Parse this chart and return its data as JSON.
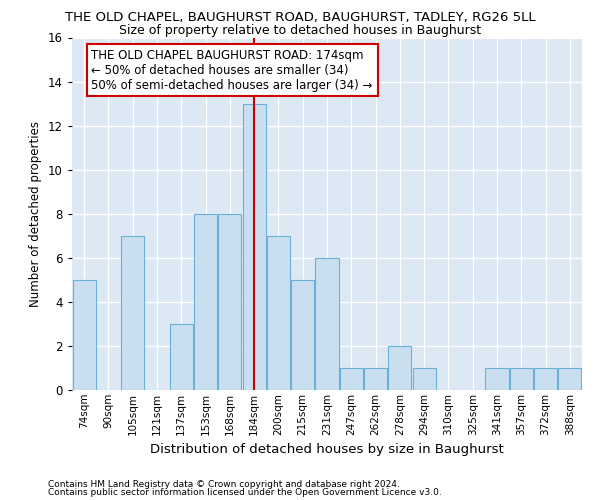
{
  "title_line1": "THE OLD CHAPEL, BAUGHURST ROAD, BAUGHURST, TADLEY, RG26 5LL",
  "title_line2": "Size of property relative to detached houses in Baughurst",
  "xlabel": "Distribution of detached houses by size in Baughurst",
  "ylabel": "Number of detached properties",
  "categories": [
    "74sqm",
    "90sqm",
    "105sqm",
    "121sqm",
    "137sqm",
    "153sqm",
    "168sqm",
    "184sqm",
    "200sqm",
    "215sqm",
    "231sqm",
    "247sqm",
    "262sqm",
    "278sqm",
    "294sqm",
    "310sqm",
    "325sqm",
    "341sqm",
    "357sqm",
    "372sqm",
    "388sqm"
  ],
  "values": [
    5,
    0,
    7,
    0,
    3,
    8,
    8,
    13,
    7,
    5,
    6,
    1,
    1,
    2,
    1,
    0,
    0,
    1,
    1,
    1,
    1
  ],
  "bar_color": "#c9dff0",
  "bar_edge_color": "#6baed6",
  "red_line_index": 7,
  "ylim": [
    0,
    16
  ],
  "yticks": [
    0,
    2,
    4,
    6,
    8,
    10,
    12,
    14,
    16
  ],
  "annotation_lines": [
    "THE OLD CHAPEL BAUGHURST ROAD: 174sqm",
    "← 50% of detached houses are smaller (34)",
    "50% of semi-detached houses are larger (34) →"
  ],
  "annotation_box_facecolor": "#ffffff",
  "annotation_box_edgecolor": "#cc0000",
  "footnote1": "Contains HM Land Registry data © Crown copyright and database right 2024.",
  "footnote2": "Contains public sector information licensed under the Open Government Licence v3.0.",
  "plot_bg_color": "#dce9f5",
  "fig_bg_color": "#ffffff",
  "title1_fontsize": 9.5,
  "title2_fontsize": 9.0,
  "xlabel_fontsize": 9.5,
  "ylabel_fontsize": 8.5,
  "xtick_fontsize": 7.5,
  "ytick_fontsize": 8.5,
  "footnote_fontsize": 6.5,
  "annot_fontsize": 8.5
}
